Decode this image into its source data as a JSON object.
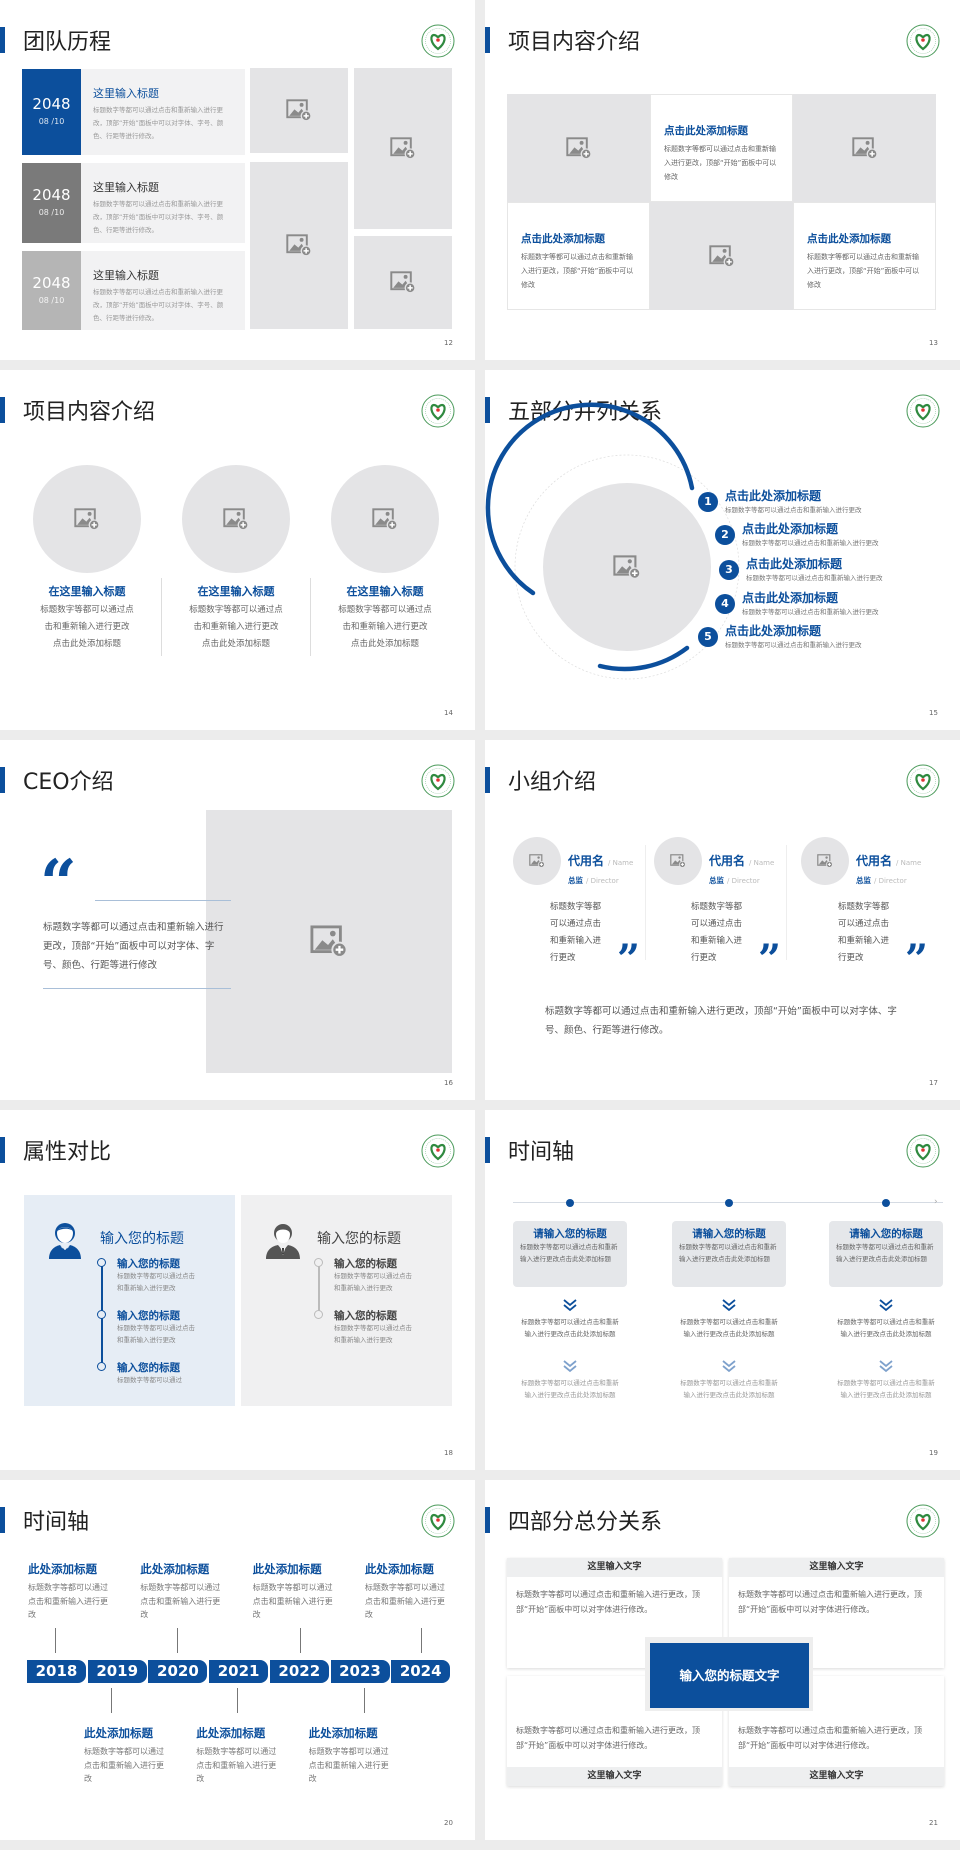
{
  "colors": {
    "accent": "#0c4f9c",
    "placeholder": "#e4e4e6",
    "grey_dark": "#777777",
    "grey_light": "#b8b8b8"
  },
  "icons": {
    "image_placeholder": "image-add-icon",
    "logo": "hospital-logo-icon"
  },
  "slides": {
    "s12": {
      "title": "团队历程",
      "page": "12",
      "rows": [
        {
          "year": "2048",
          "date": "08 /10",
          "heading": "这里输入标题",
          "body": "标题数字等都可以通过点击和重新输入进行更改，顶部“开始”面板中可以对字体、字号、颜色、行距等进行修改。"
        },
        {
          "year": "2048",
          "date": "08 /10",
          "heading": "这里输入标题",
          "body": "标题数字等都可以通过点击和重新输入进行更改，顶部“开始”面板中可以对字体、字号、颜色、行距等进行修改。"
        },
        {
          "year": "2048",
          "date": "08 /10",
          "heading": "这里输入标题",
          "body": "标题数字等都可以通过点击和重新输入进行更改，顶部“开始”面板中可以对字体、字号、颜色、行距等进行修改。"
        }
      ]
    },
    "s13": {
      "title": "项目内容介绍",
      "page": "13",
      "cards": [
        {
          "heading": "点击此处添加标题",
          "body": "标题数字等都可以通过点击和重新输入进行更改，顶部“开始”面板中可以修改"
        },
        {
          "heading": "点击此处添加标题",
          "body": "标题数字等都可以通过点击和重新输入进行更改，顶部“开始”面板中可以修改"
        },
        {
          "heading": "点击此处添加标题",
          "body": "标题数字等都可以通过点击和重新输入进行更改，顶部“开始”面板中可以修改"
        }
      ]
    },
    "s14": {
      "title": "项目内容介绍",
      "page": "14",
      "items": [
        {
          "heading": "在这里输入标题",
          "lines": [
            "标题数字等都可以通过点",
            "击和重新输入进行更改",
            "点击此处添加标题"
          ]
        },
        {
          "heading": "在这里输入标题",
          "lines": [
            "标题数字等都可以通过点",
            "击和重新输入进行更改",
            "点击此处添加标题"
          ]
        },
        {
          "heading": "在这里输入标题",
          "lines": [
            "标题数字等都可以通过点",
            "击和重新输入进行更改",
            "点击此处添加标题"
          ]
        }
      ]
    },
    "s15": {
      "title": "五部分并列关系",
      "page": "15",
      "items": [
        {
          "num": "1",
          "heading": "点击此处添加标题",
          "body": "标题数字等都可以通过点击和重新输入进行更改"
        },
        {
          "num": "2",
          "heading": "点击此处添加标题",
          "body": "标题数字等都可以通过点击和重新输入进行更改"
        },
        {
          "num": "3",
          "heading": "点击此处添加标题",
          "body": "标题数字等都可以通过点击和重新输入进行更改"
        },
        {
          "num": "4",
          "heading": "点击此处添加标题",
          "body": "标题数字等都可以通过点击和重新输入进行更改"
        },
        {
          "num": "5",
          "heading": "点击此处添加标题",
          "body": "标题数字等都可以通过点击和重新输入进行更改"
        }
      ]
    },
    "s16": {
      "title": "CEO介绍",
      "page": "16",
      "quote_mark": "“",
      "body": "标题数字等都可以通过点击和重新输入进行更改，顶部“开始”面板中可以对字体、字号、颜色、行距等进行修改"
    },
    "s17": {
      "title": "小组介绍",
      "page": "17",
      "quote_mark": "”",
      "members": [
        {
          "name": "代用名",
          "name_en": "/ Name",
          "role": "总监",
          "role_en": "/  Director",
          "body": "标题数字等都可以通过点击和重新输入进行更改"
        },
        {
          "name": "代用名",
          "name_en": "/ Name",
          "role": "总监",
          "role_en": "/  Director",
          "body": "标题数字等都可以通过点击和重新输入进行更改"
        },
        {
          "name": "代用名",
          "name_en": "/ Name",
          "role": "总监",
          "role_en": "/  Director",
          "body": "标题数字等都可以通过点击和重新输入进行更改"
        }
      ],
      "paragraph": "标题数字等都可以通过点击和重新输入进行更改，顶部“开始”面板中可以对字体、字号、颜色、行距等进行修改。"
    },
    "s18": {
      "title": "属性对比",
      "page": "18",
      "panels": [
        {
          "heading": "输入您的标题",
          "icon": "female-user-icon",
          "items": [
            {
              "heading": "输入您的标题",
              "body": "标题数字等都可以通过点击和重新输入进行更改"
            },
            {
              "heading": "输入您的标题",
              "body": "标题数字等都可以通过点击和重新输入进行更改"
            },
            {
              "heading": "输入您的标题",
              "body": "标题数字等都可以通过"
            }
          ]
        },
        {
          "heading": "输入您的标题",
          "icon": "male-user-icon",
          "items": [
            {
              "heading": "输入您的标题",
              "body": "标题数字等都可以通过点击和重新输入进行更改"
            },
            {
              "heading": "输入您的标题",
              "body": "标题数字等都可以通过点击和重新输入进行更改"
            }
          ]
        }
      ]
    },
    "s19": {
      "title": "时间轴",
      "page": "19",
      "columns": [
        {
          "heading": "请输入您的标题",
          "body": "标题数字等都可以通过点击和重新输入进行更改点击此处添加标题",
          "text1": "标题数字等都可以通过点击和重新输入进行更改点击此处添加标题",
          "text2": "标题数字等都可以通过点击和重新输入进行更改点击此处添加标题"
        },
        {
          "heading": "请输入您的标题",
          "body": "标题数字等都可以通过点击和重新输入进行更改点击此处添加标题",
          "text1": "标题数字等都可以通过点击和重新输入进行更改点击此处添加标题",
          "text2": "标题数字等都可以通过点击和重新输入进行更改点击此处添加标题"
        },
        {
          "heading": "请输入您的标题",
          "body": "标题数字等都可以通过点击和重新输入进行更改点击此处添加标题",
          "text1": "标题数字等都可以通过点击和重新输入进行更改点击此处添加标题",
          "text2": "标题数字等都可以通过点击和重新输入进行更改点击此处添加标题"
        }
      ]
    },
    "s20": {
      "title": "时间轴",
      "page": "20",
      "years": [
        "2018",
        "2019",
        "2020",
        "2021",
        "2022",
        "2023",
        "2024"
      ],
      "top_items": [
        {
          "heading": "此处添加标题",
          "body": "标题数字等都可以通过点击和重新输入进行更改"
        },
        {
          "heading": "此处添加标题",
          "body": "标题数字等都可以通过点击和重新输入进行更改"
        },
        {
          "heading": "此处添加标题",
          "body": "标题数字等都可以通过点击和重新输入进行更改"
        },
        {
          "heading": "此处添加标题",
          "body": "标题数字等都可以通过点击和重新输入进行更改"
        }
      ],
      "bottom_items": [
        {
          "heading": "此处添加标题",
          "body": "标题数字等都可以通过点击和重新输入进行更改"
        },
        {
          "heading": "此处添加标题",
          "body": "标题数字等都可以通过点击和重新输入进行更改"
        },
        {
          "heading": "此处添加标题",
          "body": "标题数字等都可以通过点击和重新输入进行更改"
        }
      ]
    },
    "s21": {
      "title": "四部分总分关系",
      "page": "21",
      "center": "输入您的标题文字",
      "cards": [
        {
          "label": "这里输入文字",
          "body": "标题数字等都可以通过点击和重新输入进行更改，顶部“开始”面板中可以对字体进行修改。"
        },
        {
          "label": "这里输入文字",
          "body": "标题数字等都可以通过点击和重新输入进行更改，顶部“开始”面板中可以对字体进行修改。"
        },
        {
          "label": "这里输入文字",
          "body": "标题数字等都可以通过点击和重新输入进行更改，顶部“开始”面板中可以对字体进行修改。"
        },
        {
          "label": "这里输入文字",
          "body": "标题数字等都可以通过点击和重新输入进行更改，顶部“开始”面板中可以对字体进行修改。"
        }
      ]
    }
  }
}
